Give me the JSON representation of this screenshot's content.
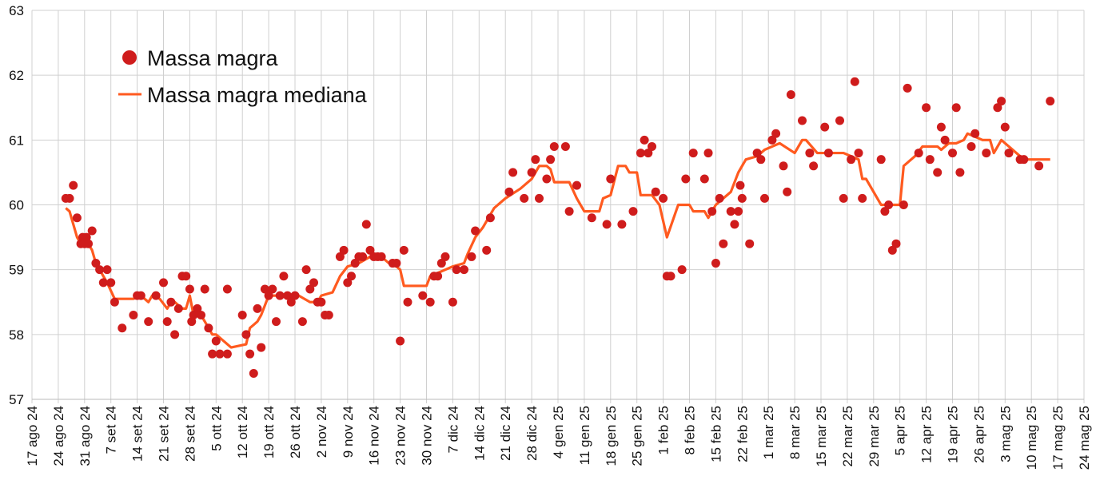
{
  "chart_data": {
    "type": "scatter",
    "title": "",
    "xlabel": "",
    "ylabel": "",
    "ylim": [
      57,
      63
    ],
    "yticks": [
      "57",
      "58",
      "59",
      "60",
      "61",
      "62",
      "63"
    ],
    "x_unit": "days since 17 ago 24",
    "xlim": [
      0,
      280
    ],
    "xticks": [
      "17 ago 24",
      "24 ago 24",
      "31 ago 24",
      "7 set 24",
      "14 set 24",
      "21 set 24",
      "28 set 24",
      "5 ott 24",
      "12 ott 24",
      "19 ott 24",
      "26 ott 24",
      "2 nov 24",
      "9 nov 24",
      "16 nov 24",
      "23 nov 24",
      "30 nov 24",
      "7 dic 24",
      "14 dic 24",
      "21 dic 24",
      "28 dic 24",
      "4 gen 25",
      "11 gen 25",
      "18 gen 25",
      "25 gen 25",
      "1 feb 25",
      "8 feb 25",
      "15 feb 25",
      "22 feb 25",
      "1 mar 25",
      "8 mar 25",
      "15 mar 25",
      "22 mar 25",
      "29 mar 25",
      "5 apr 25",
      "12 apr 25",
      "19 apr 25",
      "26 apr 25",
      "3 mag 25",
      "10 mag 25",
      "17 mag 25",
      "24 mag 25"
    ],
    "grid": true,
    "legend_position": "top-left",
    "colors": {
      "points": "#cf1c1c",
      "median": "#ff5a1f"
    },
    "series": [
      {
        "name": "Massa magra",
        "kind": "points",
        "data": [
          [
            9,
            60.1
          ],
          [
            10,
            60.1
          ],
          [
            11,
            60.3
          ],
          [
            12,
            59.8
          ],
          [
            13,
            59.4
          ],
          [
            13.5,
            59.5
          ],
          [
            14,
            59.4
          ],
          [
            14.5,
            59.5
          ],
          [
            15,
            59.4
          ],
          [
            16,
            59.6
          ],
          [
            17,
            59.1
          ],
          [
            18,
            59.0
          ],
          [
            19,
            58.8
          ],
          [
            20,
            59.0
          ],
          [
            21,
            58.8
          ],
          [
            22,
            58.5
          ],
          [
            24,
            58.1
          ],
          [
            27,
            58.3
          ],
          [
            28,
            58.6
          ],
          [
            29,
            58.6
          ],
          [
            31,
            58.2
          ],
          [
            33,
            58.6
          ],
          [
            35,
            58.8
          ],
          [
            36,
            58.2
          ],
          [
            37,
            58.5
          ],
          [
            38,
            58.0
          ],
          [
            39,
            58.4
          ],
          [
            40,
            58.9
          ],
          [
            41,
            58.9
          ],
          [
            42,
            58.7
          ],
          [
            42.5,
            58.2
          ],
          [
            43,
            58.3
          ],
          [
            44,
            58.4
          ],
          [
            45,
            58.3
          ],
          [
            46,
            58.7
          ],
          [
            47,
            58.1
          ],
          [
            48,
            57.7
          ],
          [
            49,
            57.9
          ],
          [
            50,
            57.7
          ],
          [
            52,
            57.7
          ],
          [
            52,
            58.7
          ],
          [
            56,
            58.3
          ],
          [
            57,
            58.0
          ],
          [
            58,
            57.7
          ],
          [
            59,
            57.4
          ],
          [
            60,
            58.4
          ],
          [
            61,
            57.8
          ],
          [
            62,
            58.7
          ],
          [
            63,
            58.6
          ],
          [
            64,
            58.7
          ],
          [
            65,
            58.2
          ],
          [
            66,
            58.6
          ],
          [
            67,
            58.9
          ],
          [
            68,
            58.6
          ],
          [
            69,
            58.5
          ],
          [
            70,
            58.6
          ],
          [
            72,
            58.2
          ],
          [
            73,
            59.0
          ],
          [
            74,
            58.7
          ],
          [
            75,
            58.8
          ],
          [
            76,
            58.5
          ],
          [
            77,
            58.5
          ],
          [
            78,
            58.3
          ],
          [
            79,
            58.3
          ],
          [
            82,
            59.2
          ],
          [
            83,
            59.3
          ],
          [
            84,
            58.8
          ],
          [
            85,
            58.9
          ],
          [
            86,
            59.1
          ],
          [
            87,
            59.2
          ],
          [
            88,
            59.2
          ],
          [
            89,
            59.7
          ],
          [
            90,
            59.3
          ],
          [
            91,
            59.2
          ],
          [
            92,
            59.2
          ],
          [
            93,
            59.2
          ],
          [
            96,
            59.1
          ],
          [
            97,
            59.1
          ],
          [
            98,
            57.9
          ],
          [
            99,
            59.3
          ],
          [
            100,
            58.5
          ],
          [
            104,
            58.6
          ],
          [
            106,
            58.5
          ],
          [
            107,
            58.9
          ],
          [
            108,
            58.9
          ],
          [
            109,
            59.1
          ],
          [
            110,
            59.2
          ],
          [
            112,
            58.5
          ],
          [
            113,
            59.0
          ],
          [
            115,
            59.0
          ],
          [
            117,
            59.2
          ],
          [
            118,
            59.6
          ],
          [
            121,
            59.3
          ],
          [
            122,
            59.8
          ],
          [
            127,
            60.2
          ],
          [
            128,
            60.5
          ],
          [
            131,
            60.1
          ],
          [
            133,
            60.5
          ],
          [
            134,
            60.7
          ],
          [
            135,
            60.1
          ],
          [
            137,
            60.4
          ],
          [
            138,
            60.7
          ],
          [
            139,
            60.9
          ],
          [
            142,
            60.9
          ],
          [
            143,
            59.9
          ],
          [
            145,
            60.3
          ],
          [
            149,
            59.8
          ],
          [
            153,
            59.7
          ],
          [
            154,
            60.4
          ],
          [
            157,
            59.7
          ],
          [
            160,
            59.9
          ],
          [
            162,
            60.8
          ],
          [
            163,
            61.0
          ],
          [
            164,
            60.8
          ],
          [
            165,
            60.9
          ],
          [
            166,
            60.2
          ],
          [
            168,
            60.1
          ],
          [
            169,
            58.9
          ],
          [
            170,
            58.9
          ],
          [
            173,
            59.0
          ],
          [
            174,
            60.4
          ],
          [
            176,
            60.8
          ],
          [
            179,
            60.4
          ],
          [
            180,
            60.8
          ],
          [
            181,
            59.9
          ],
          [
            182,
            59.1
          ],
          [
            183,
            60.1
          ],
          [
            184,
            59.4
          ],
          [
            186,
            59.9
          ],
          [
            187,
            59.7
          ],
          [
            188,
            59.9
          ],
          [
            188.5,
            60.3
          ],
          [
            189,
            60.1
          ],
          [
            191,
            59.4
          ],
          [
            193,
            60.8
          ],
          [
            194,
            60.7
          ],
          [
            195,
            60.1
          ],
          [
            197,
            61.0
          ],
          [
            198,
            61.1
          ],
          [
            200,
            60.6
          ],
          [
            201,
            60.2
          ],
          [
            202,
            61.7
          ],
          [
            205,
            61.3
          ],
          [
            207,
            60.8
          ],
          [
            208,
            60.6
          ],
          [
            211,
            61.2
          ],
          [
            212,
            60.8
          ],
          [
            215,
            61.3
          ],
          [
            216,
            60.1
          ],
          [
            218,
            60.7
          ],
          [
            219,
            61.9
          ],
          [
            220,
            60.8
          ],
          [
            221,
            60.1
          ],
          [
            226,
            60.7
          ],
          [
            227,
            59.9
          ],
          [
            228,
            60.0
          ],
          [
            229,
            59.3
          ],
          [
            230,
            59.4
          ],
          [
            232,
            60.0
          ],
          [
            233,
            61.8
          ],
          [
            236,
            60.8
          ],
          [
            238,
            61.5
          ],
          [
            239,
            60.7
          ],
          [
            241,
            60.5
          ],
          [
            242,
            61.2
          ],
          [
            243,
            61.0
          ],
          [
            245,
            60.8
          ],
          [
            246,
            61.5
          ],
          [
            247,
            60.5
          ],
          [
            250,
            60.9
          ],
          [
            251,
            61.1
          ],
          [
            254,
            60.8
          ],
          [
            257,
            61.5
          ],
          [
            258,
            61.6
          ],
          [
            259,
            61.2
          ],
          [
            260,
            60.8
          ],
          [
            263,
            60.7
          ],
          [
            264,
            60.7
          ],
          [
            268,
            60.6
          ],
          [
            271,
            61.6
          ]
        ]
      },
      {
        "name": "Massa magra mediana",
        "kind": "line",
        "data": [
          [
            9,
            59.95
          ],
          [
            10,
            59.9
          ],
          [
            11,
            59.7
          ],
          [
            12,
            59.5
          ],
          [
            13,
            59.4
          ],
          [
            15,
            59.4
          ],
          [
            16,
            59.3
          ],
          [
            17,
            59.1
          ],
          [
            18,
            59.0
          ],
          [
            19,
            58.9
          ],
          [
            20,
            58.8
          ],
          [
            22,
            58.55
          ],
          [
            27,
            58.55
          ],
          [
            29,
            58.6
          ],
          [
            31,
            58.5
          ],
          [
            32,
            58.6
          ],
          [
            34,
            58.55
          ],
          [
            36,
            58.4
          ],
          [
            37,
            58.5
          ],
          [
            38,
            58.5
          ],
          [
            39,
            58.45
          ],
          [
            40,
            58.4
          ],
          [
            41,
            58.4
          ],
          [
            42,
            58.6
          ],
          [
            43,
            58.3
          ],
          [
            44,
            58.35
          ],
          [
            45,
            58.3
          ],
          [
            46,
            58.2
          ],
          [
            48,
            58.0
          ],
          [
            49,
            58.0
          ],
          [
            51,
            57.9
          ],
          [
            53,
            57.8
          ],
          [
            57,
            57.85
          ],
          [
            58,
            58.1
          ],
          [
            59,
            58.15
          ],
          [
            60,
            58.2
          ],
          [
            61,
            58.3
          ],
          [
            62,
            58.45
          ],
          [
            63,
            58.6
          ],
          [
            66,
            58.6
          ],
          [
            69,
            58.55
          ],
          [
            71,
            58.6
          ],
          [
            74,
            58.5
          ],
          [
            76,
            58.5
          ],
          [
            77,
            58.6
          ],
          [
            80,
            58.65
          ],
          [
            82,
            58.9
          ],
          [
            84,
            59.05
          ],
          [
            87,
            59.1
          ],
          [
            90,
            59.2
          ],
          [
            93,
            59.2
          ],
          [
            95,
            59.1
          ],
          [
            96,
            59.1
          ],
          [
            98,
            59.0
          ],
          [
            99,
            58.75
          ],
          [
            105,
            58.75
          ],
          [
            106,
            58.9
          ],
          [
            108,
            58.95
          ],
          [
            110,
            59.0
          ],
          [
            112,
            59.05
          ],
          [
            115,
            59.1
          ],
          [
            116,
            59.25
          ],
          [
            118,
            59.5
          ],
          [
            120,
            59.65
          ],
          [
            122,
            59.85
          ],
          [
            123,
            59.95
          ],
          [
            126,
            60.1
          ],
          [
            130,
            60.25
          ],
          [
            133,
            60.4
          ],
          [
            135,
            60.6
          ],
          [
            137,
            60.6
          ],
          [
            138,
            60.55
          ],
          [
            139,
            60.35
          ],
          [
            143,
            60.35
          ],
          [
            145,
            60.1
          ],
          [
            147,
            59.9
          ],
          [
            151,
            59.9
          ],
          [
            152,
            60.1
          ],
          [
            154,
            60.15
          ],
          [
            156,
            60.6
          ],
          [
            158,
            60.6
          ],
          [
            159,
            60.5
          ],
          [
            161,
            60.5
          ],
          [
            162,
            60.15
          ],
          [
            165,
            60.15
          ],
          [
            167,
            60.0
          ],
          [
            169,
            59.5
          ],
          [
            172,
            60.0
          ],
          [
            175,
            60.0
          ],
          [
            176,
            59.9
          ],
          [
            179,
            59.9
          ],
          [
            180,
            59.8
          ],
          [
            182,
            60.0
          ],
          [
            184,
            60.1
          ],
          [
            186,
            60.2
          ],
          [
            188,
            60.5
          ],
          [
            190,
            60.7
          ],
          [
            193,
            60.75
          ],
          [
            195,
            60.85
          ],
          [
            197,
            60.9
          ],
          [
            199,
            60.95
          ],
          [
            203,
            60.8
          ],
          [
            205,
            61.0
          ],
          [
            206,
            61.0
          ],
          [
            209,
            60.8
          ],
          [
            212,
            60.8
          ],
          [
            216,
            60.8
          ],
          [
            218,
            60.75
          ],
          [
            220,
            60.7
          ],
          [
            221,
            60.4
          ],
          [
            222,
            60.4
          ],
          [
            226,
            60.0
          ],
          [
            231,
            60.0
          ],
          [
            232,
            60.6
          ],
          [
            235,
            60.75
          ],
          [
            237,
            60.9
          ],
          [
            241,
            60.9
          ],
          [
            242,
            60.85
          ],
          [
            244,
            60.95
          ],
          [
            246,
            60.95
          ],
          [
            248,
            61.0
          ],
          [
            249,
            61.1
          ],
          [
            253,
            61.0
          ],
          [
            255,
            61.0
          ],
          [
            256,
            60.8
          ],
          [
            258,
            61.0
          ],
          [
            261,
            60.85
          ],
          [
            263,
            60.75
          ],
          [
            265,
            60.7
          ],
          [
            271,
            60.7
          ]
        ]
      }
    ]
  }
}
